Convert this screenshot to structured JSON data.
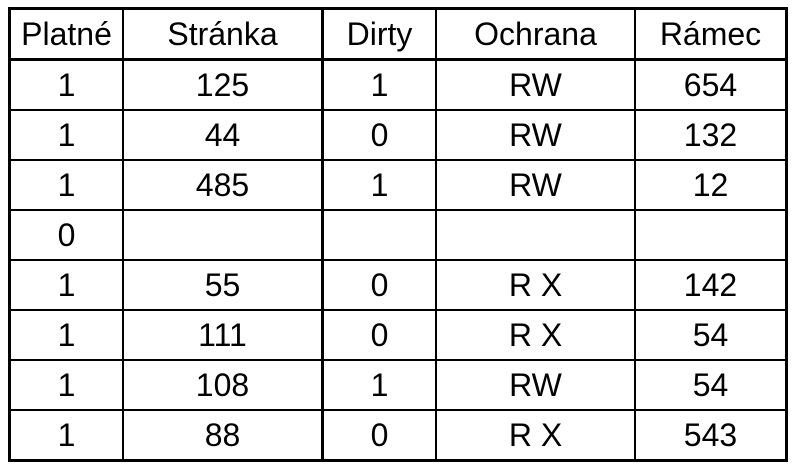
{
  "table": {
    "headers": [
      "Platné",
      "Stránka",
      "Dirty",
      "Ochrana",
      "Rámec"
    ],
    "rows": [
      [
        "1",
        "125",
        "1",
        "RW",
        "654"
      ],
      [
        "1",
        "44",
        "0",
        "RW",
        "132"
      ],
      [
        "1",
        "485",
        "1",
        "RW",
        "12"
      ],
      [
        "0",
        "",
        "",
        "",
        ""
      ],
      [
        "1",
        "55",
        "0",
        "R X",
        "142"
      ],
      [
        "1",
        "111",
        "0",
        "R X",
        "54"
      ],
      [
        "1",
        "108",
        "1",
        "RW",
        "54"
      ],
      [
        "1",
        "88",
        "0",
        "R X",
        "543"
      ]
    ]
  }
}
